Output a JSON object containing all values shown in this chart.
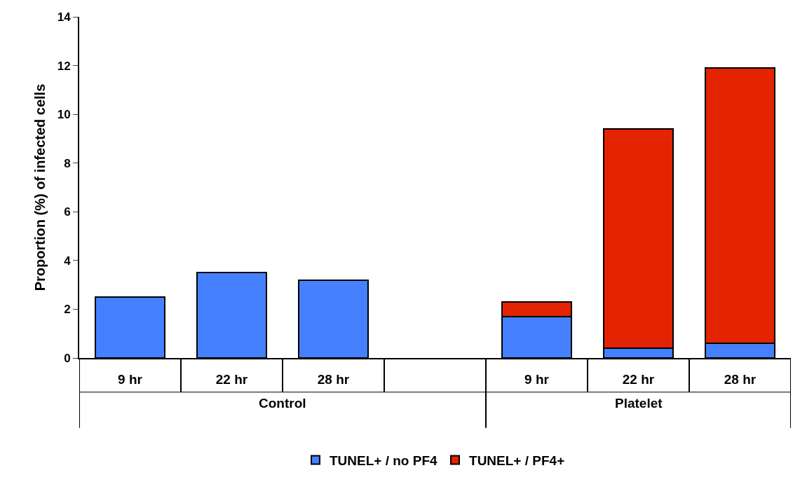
{
  "chart_data": {
    "type": "bar",
    "stacked": true,
    "ylabel": "Proportion (%) of infected cells",
    "categories": [
      "9 hr",
      "22 hr",
      "28 hr",
      null,
      "9 hr",
      "22 hr",
      "28 hr"
    ],
    "series": [
      {
        "name": "TUNEL+ / no PF4",
        "color": "#4580ff",
        "values": [
          2.5,
          3.5,
          3.2,
          null,
          1.7,
          0.4,
          0.6
        ]
      },
      {
        "name": "TUNEL+ / PF4+",
        "color": "#e42300",
        "values": [
          null,
          null,
          null,
          null,
          0.6,
          9.0,
          11.3
        ]
      }
    ],
    "ylim": [
      0,
      14
    ],
    "yticks": [
      0,
      2,
      4,
      6,
      8,
      10,
      12,
      14
    ],
    "annotations": [
      "Control",
      "Platelet"
    ],
    "legend": "bottom"
  }
}
